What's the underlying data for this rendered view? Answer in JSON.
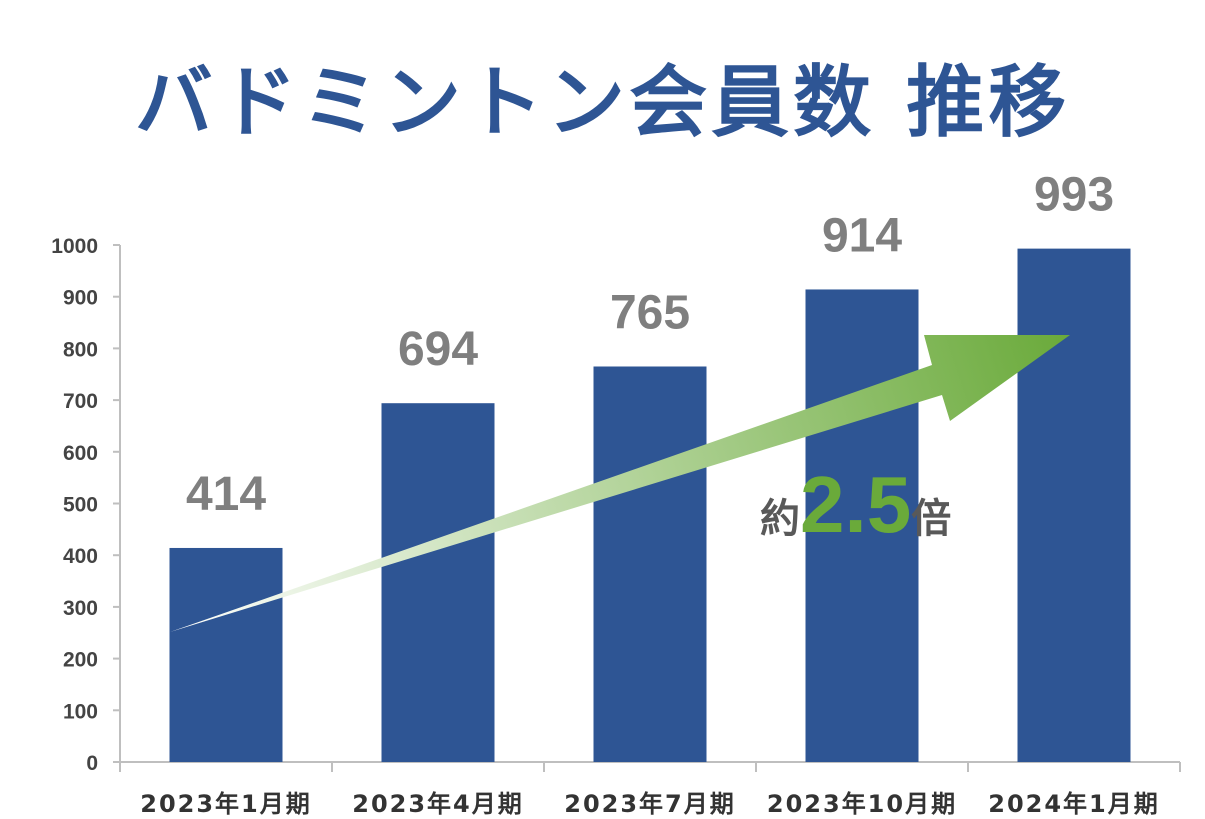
{
  "chart_data": {
    "type": "bar",
    "title": "バドミントン会員数 推移",
    "categories": [
      "2023年1月期",
      "2023年4月期",
      "2023年7月期",
      "2023年10月期",
      "2024年1月期"
    ],
    "values": [
      414,
      694,
      765,
      914,
      993
    ],
    "ylim": [
      0,
      1000
    ],
    "yticks": [
      0,
      100,
      200,
      300,
      400,
      500,
      600,
      700,
      800,
      900,
      1000
    ],
    "grid": false,
    "bar_color": "#2e5594",
    "label_color": "#7f7f7f",
    "annotation": {
      "prefix": "約",
      "value": "2.5",
      "suffix": "倍",
      "value_color": "#6aaa3a",
      "arrow_color": "#6aaa3a"
    }
  }
}
